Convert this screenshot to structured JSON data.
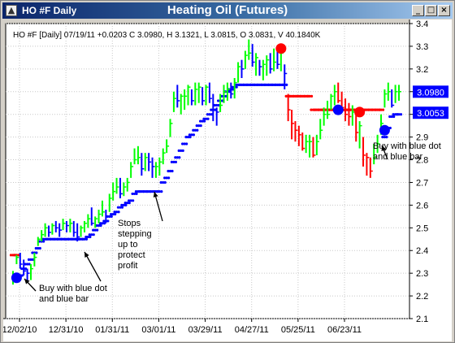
{
  "window": {
    "title": "HO #F Daily",
    "main_title": "Heating Oil (Futures)",
    "buttons": {
      "minimize": "_",
      "maximize": "□",
      "close": "×"
    }
  },
  "chart_data": {
    "type": "ohlc",
    "info_line": "HO #F [Daily] 07/19/11  +0.0203 C 3.0980, H 3.1321, L 3.0815, O 3.0831, V 40.1840K",
    "y_ticks": [
      2.1,
      2.2,
      2.3,
      2.4,
      2.5,
      2.6,
      2.7,
      2.8,
      2.9,
      3.0,
      3.1,
      3.2,
      3.3,
      3.4
    ],
    "ylim": [
      2.1,
      3.4
    ],
    "x_ticks": [
      "12/02/10",
      "12/31/10",
      "01/31/11",
      "03/01/11",
      "03/29/11",
      "04/27/11",
      "05/25/11",
      "06/23/11"
    ],
    "price_labels": [
      {
        "text": "3.0980",
        "value": 3.098
      },
      {
        "text": "3.0053",
        "value": 3.0053
      }
    ],
    "colors": {
      "up": "#00ff00",
      "down": "#0000ff",
      "sell": "#ff0000",
      "grid": "#c8c8c8",
      "label_bg": "#0000ff"
    },
    "annotations": [
      {
        "text_lines": [
          "Buy with blue dot",
          "and blue bar"
        ]
      },
      {
        "text_lines": [
          "Stops",
          "stepping",
          "up to",
          "protect",
          "profit"
        ]
      },
      {
        "text_lines": [
          "Buy with blue dot",
          "and blue bar"
        ]
      }
    ],
    "series": [
      {
        "name": "Price bars",
        "highs": [
          2.31,
          2.38,
          2.39,
          2.36,
          2.32,
          2.34,
          2.39,
          2.46,
          2.49,
          2.52,
          2.51,
          2.52,
          2.53,
          2.52,
          2.54,
          2.53,
          2.54,
          2.53,
          2.52,
          2.51,
          2.53,
          2.56,
          2.59,
          2.55,
          2.58,
          2.62,
          2.58,
          2.65,
          2.7,
          2.72,
          2.72,
          2.7,
          2.72,
          2.79,
          2.85,
          2.86,
          2.83,
          2.83,
          2.83,
          2.81,
          2.79,
          2.81,
          2.85,
          2.89,
          2.98,
          3.1,
          3.13,
          3.09,
          3.11,
          3.13,
          3.11,
          3.14,
          3.14,
          3.12,
          3.13,
          3.14,
          3.09,
          3.03,
          3.09,
          3.13,
          3.14,
          3.14,
          3.16,
          3.23,
          3.24,
          3.28,
          3.33,
          3.31,
          3.27,
          3.24,
          3.24,
          3.26,
          3.27,
          3.29,
          3.29,
          3.28,
          3.22,
          3.09,
          3.02,
          2.97,
          2.95,
          2.92,
          2.91,
          2.91,
          2.9,
          2.91,
          2.98,
          3.03,
          3.06,
          3.09,
          3.13,
          3.14,
          3.1,
          3.07,
          3.05,
          3.04,
          3.0,
          2.97,
          2.9,
          2.83,
          2.81,
          2.87,
          2.91,
          3.0,
          3.11,
          3.14,
          3.11,
          3.13,
          3.13
        ],
        "lows": [
          2.25,
          2.34,
          2.32,
          2.29,
          2.27,
          2.27,
          2.33,
          2.42,
          2.44,
          2.46,
          2.46,
          2.47,
          2.48,
          2.46,
          2.49,
          2.48,
          2.48,
          2.46,
          2.44,
          2.46,
          2.48,
          2.5,
          2.51,
          2.5,
          2.52,
          2.55,
          2.52,
          2.57,
          2.62,
          2.65,
          2.63,
          2.64,
          2.66,
          2.72,
          2.78,
          2.78,
          2.73,
          2.75,
          2.75,
          2.72,
          2.72,
          2.73,
          2.78,
          2.83,
          2.9,
          3.01,
          3.03,
          3.0,
          3.02,
          3.04,
          3.04,
          3.04,
          3.05,
          3.04,
          3.04,
          3.05,
          2.97,
          2.95,
          3.01,
          3.05,
          3.06,
          3.07,
          3.07,
          3.14,
          3.16,
          3.2,
          3.24,
          3.21,
          3.17,
          3.17,
          3.15,
          3.17,
          3.18,
          3.19,
          3.2,
          3.19,
          3.11,
          2.97,
          2.89,
          2.88,
          2.86,
          2.84,
          2.83,
          2.81,
          2.81,
          2.82,
          2.89,
          2.95,
          2.98,
          3.02,
          3.04,
          3.05,
          3.01,
          2.97,
          2.95,
          2.95,
          2.88,
          2.85,
          2.77,
          2.73,
          2.72,
          2.78,
          2.83,
          2.91,
          3.03,
          3.06,
          3.03,
          3.05,
          3.06
        ],
        "closes": [
          2.28,
          2.37,
          2.34,
          2.31,
          2.3,
          2.32,
          2.37,
          2.45,
          2.47,
          2.5,
          2.48,
          2.51,
          2.5,
          2.49,
          2.52,
          2.51,
          2.52,
          2.48,
          2.46,
          2.5,
          2.52,
          2.54,
          2.52,
          2.54,
          2.56,
          2.57,
          2.55,
          2.63,
          2.66,
          2.68,
          2.65,
          2.68,
          2.7,
          2.77,
          2.8,
          2.81,
          2.76,
          2.81,
          2.79,
          2.77,
          2.77,
          2.79,
          2.83,
          2.86,
          2.96,
          3.07,
          3.06,
          3.08,
          3.08,
          3.12,
          3.06,
          3.11,
          3.12,
          3.06,
          3.12,
          3.07,
          3.04,
          3.01,
          3.04,
          3.1,
          3.11,
          3.09,
          3.14,
          3.21,
          3.2,
          3.26,
          3.27,
          3.23,
          3.25,
          3.21,
          3.22,
          3.24,
          3.2,
          3.23,
          3.22,
          3.27,
          3.18,
          3.02,
          2.96,
          2.93,
          2.91,
          2.85,
          2.88,
          2.88,
          2.82,
          2.88,
          2.93,
          3.0,
          3.0,
          3.08,
          3.1,
          3.06,
          3.03,
          3.0,
          2.99,
          3.01,
          2.92,
          2.95,
          2.82,
          2.81,
          2.75,
          2.81,
          2.87,
          2.96,
          3.09,
          3.1,
          3.04,
          3.1,
          3.1
        ]
      },
      {
        "name": "Trailing stop (blue dots)",
        "values": [
          null,
          null,
          2.29,
          2.32,
          2.34,
          2.36,
          2.39,
          2.41,
          2.44,
          2.45,
          2.45,
          2.45,
          2.45,
          2.45,
          2.45,
          2.45,
          2.45,
          2.45,
          2.45,
          2.45,
          2.45,
          2.46,
          2.47,
          2.49,
          2.51,
          2.52,
          2.53,
          2.55,
          2.56,
          2.57,
          2.59,
          2.6,
          2.61,
          2.62,
          2.65,
          2.66,
          2.66,
          2.66,
          2.66,
          2.66,
          2.66,
          2.66,
          2.7,
          2.72,
          2.75,
          2.79,
          2.81,
          2.84,
          2.87,
          2.9,
          2.91,
          2.93,
          2.95,
          2.97,
          2.98,
          3.0,
          3.02,
          3.04,
          3.06,
          3.08,
          3.1,
          3.11,
          3.12,
          3.13,
          3.13,
          3.13,
          3.13,
          3.13,
          3.13,
          3.13,
          3.13,
          3.13,
          3.13,
          3.13,
          3.13,
          3.13,
          3.13,
          null,
          null,
          null,
          null,
          null,
          null,
          null,
          null,
          null,
          null,
          null,
          null,
          null,
          null,
          null,
          null,
          null,
          null,
          null,
          null,
          null,
          null,
          null,
          null,
          null,
          null,
          null,
          2.9,
          2.94,
          2.99,
          3.0,
          3.0
        ]
      },
      {
        "name": "Red stop dots",
        "values": [
          2.38,
          2.38,
          null,
          null,
          null,
          null,
          null,
          null,
          null,
          null,
          null,
          null,
          null,
          null,
          null,
          null,
          null,
          null,
          null,
          null,
          null,
          null,
          null,
          null,
          null,
          null,
          null,
          null,
          null,
          null,
          null,
          null,
          null,
          null,
          null,
          null,
          null,
          null,
          null,
          null,
          null,
          null,
          null,
          null,
          null,
          null,
          null,
          null,
          null,
          null,
          null,
          null,
          null,
          null,
          null,
          null,
          null,
          null,
          null,
          null,
          null,
          null,
          null,
          null,
          null,
          null,
          null,
          null,
          null,
          null,
          null,
          null,
          null,
          null,
          null,
          null,
          null,
          3.08,
          3.08,
          3.08,
          3.08,
          3.08,
          3.08,
          3.08,
          3.02,
          3.02,
          3.02,
          3.02,
          3.02,
          3.02,
          3.02,
          3.02,
          3.02,
          3.02,
          3.02,
          3.02,
          3.02,
          3.02,
          3.02,
          3.02,
          3.02,
          3.02,
          3.02,
          3.02,
          null,
          null,
          null,
          null,
          null
        ]
      },
      {
        "name": "Big signal dots",
        "values": [
          {
            "index": 1,
            "value": 2.28,
            "color": "#0000ff"
          },
          {
            "index": 75,
            "value": 3.29,
            "color": "#ff0000"
          },
          {
            "index": 91,
            "value": 3.02,
            "color": "#0000ff"
          },
          {
            "index": 97,
            "value": 3.01,
            "color": "#ff0000"
          },
          {
            "index": 104,
            "value": 2.93,
            "color": "#0000ff"
          }
        ]
      }
    ]
  }
}
